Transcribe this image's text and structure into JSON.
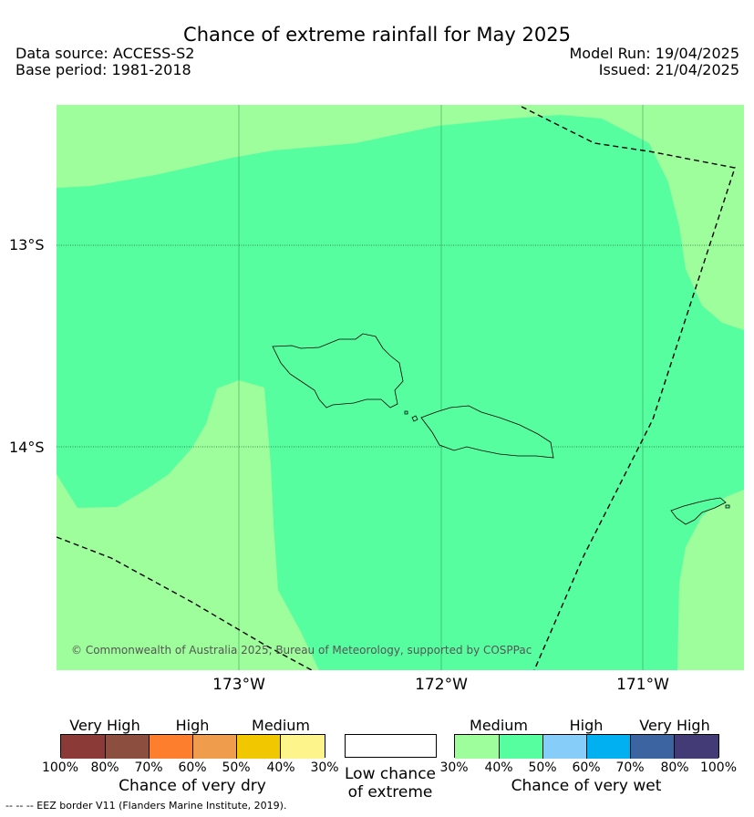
{
  "header": {
    "title": "Chance of extreme rainfall for May 2025",
    "data_source": "Data source: ACCESS-S2",
    "base_period": "Base period: 1981-2018",
    "model_run": "Model Run: 19/04/2025",
    "issued": "Issued: 21/04/2025"
  },
  "map": {
    "lat_labels": [
      "13°S",
      "14°S"
    ],
    "lon_labels": [
      "173°W",
      "172°W",
      "171°W"
    ],
    "copyright": "© Commonwealth of Australia 2025, Bureau of Meteorology, supported by COSPPac",
    "colors": {
      "medium_wet": "#9efe9b",
      "medium_wet_40": "#57fea0"
    }
  },
  "legend": {
    "dry": {
      "levels": [
        "Very High",
        "High",
        "Medium"
      ],
      "ticks": [
        "100%",
        "80%",
        "70%",
        "60%",
        "50%",
        "40%",
        "30%"
      ],
      "caption": "Chance of very dry",
      "colors": [
        "#8b3a37",
        "#8c4e3f",
        "#fd7f2d",
        "#ef9c4d",
        "#f1c800",
        "#fef48c"
      ]
    },
    "low": {
      "caption_line1": "Low chance",
      "caption_line2": "of extreme"
    },
    "wet": {
      "levels": [
        "Medium",
        "High",
        "Very High"
      ],
      "ticks": [
        "30%",
        "40%",
        "50%",
        "60%",
        "70%",
        "80%",
        "100%"
      ],
      "caption": "Chance of very wet",
      "colors": [
        "#9efe9b",
        "#57fea0",
        "#87cdf9",
        "#00b0f0",
        "#3b64a0",
        "#433b76"
      ]
    }
  },
  "footnote": "--  --  -- EEZ border V11 (Flanders Marine Institute, 2019)."
}
